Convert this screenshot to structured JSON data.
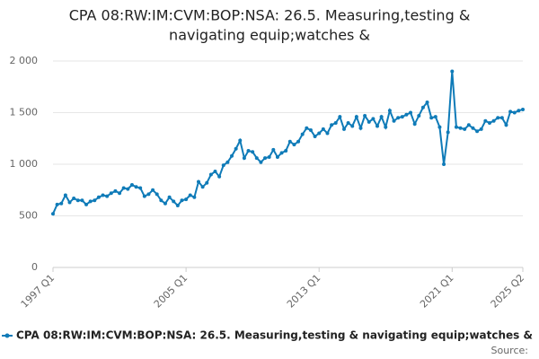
{
  "chart_data": {
    "type": "line",
    "title": [
      "CPA 08:RW:IM:CVM:BOP:NSA: 26.5. Measuring,testing &",
      "navigating equip;watches &"
    ],
    "categories": [
      "1997 Q1",
      null,
      null,
      null,
      null,
      null,
      null,
      null,
      null,
      null,
      null,
      null,
      null,
      null,
      null,
      null,
      null,
      null,
      null,
      null,
      null,
      null,
      null,
      null,
      null,
      null,
      null,
      null,
      null,
      null,
      null,
      null,
      "2005 Q1",
      null,
      null,
      null,
      null,
      null,
      null,
      null,
      null,
      null,
      null,
      null,
      null,
      null,
      null,
      null,
      null,
      null,
      null,
      null,
      null,
      null,
      null,
      null,
      null,
      null,
      null,
      null,
      null,
      null,
      null,
      null,
      "2013 Q1",
      null,
      null,
      null,
      null,
      null,
      null,
      null,
      null,
      null,
      null,
      null,
      null,
      null,
      null,
      null,
      null,
      null,
      null,
      null,
      null,
      null,
      null,
      null,
      null,
      null,
      null,
      null,
      null,
      null,
      null,
      null,
      "2021 Q1",
      null,
      null,
      null,
      null,
      null,
      null,
      null,
      null,
      null,
      null,
      null,
      null,
      null,
      null,
      null,
      null,
      "2025 Q2"
    ],
    "series": [
      {
        "name": "CPA 08:RW:IM:CVM:BOP:NSA: 26.5. Measuring,testing & navigating equip;watches &",
        "color": "#0f7bb8",
        "values": [
          520,
          610,
          620,
          700,
          630,
          670,
          650,
          650,
          610,
          640,
          650,
          680,
          700,
          690,
          720,
          740,
          720,
          770,
          760,
          800,
          780,
          770,
          690,
          710,
          750,
          710,
          650,
          620,
          680,
          640,
          600,
          650,
          660,
          700,
          680,
          830,
          780,
          820,
          900,
          930,
          880,
          990,
          1020,
          1080,
          1150,
          1230,
          1060,
          1130,
          1120,
          1060,
          1020,
          1060,
          1070,
          1140,
          1070,
          1110,
          1130,
          1220,
          1190,
          1220,
          1290,
          1350,
          1330,
          1270,
          1300,
          1340,
          1300,
          1380,
          1400,
          1460,
          1340,
          1400,
          1370,
          1460,
          1350,
          1470,
          1410,
          1440,
          1370,
          1460,
          1360,
          1520,
          1420,
          1450,
          1460,
          1480,
          1500,
          1390,
          1470,
          1550,
          1600,
          1450,
          1460,
          1360,
          1000,
          1310,
          1900,
          1360,
          1350,
          1340,
          1380,
          1350,
          1320,
          1340,
          1420,
          1400,
          1420,
          1450,
          1450,
          1380,
          1510,
          1500,
          1520,
          1530
        ]
      }
    ],
    "ylim": [
      0,
      2000
    ],
    "yticks": [
      0,
      500,
      {
        "value": 1000,
        "label": "1 000"
      },
      {
        "value": 1500,
        "label": "1 500"
      },
      {
        "value": 2000,
        "label": "2 000"
      }
    ],
    "grid": true,
    "legend": "bottom",
    "source": "Source:"
  }
}
